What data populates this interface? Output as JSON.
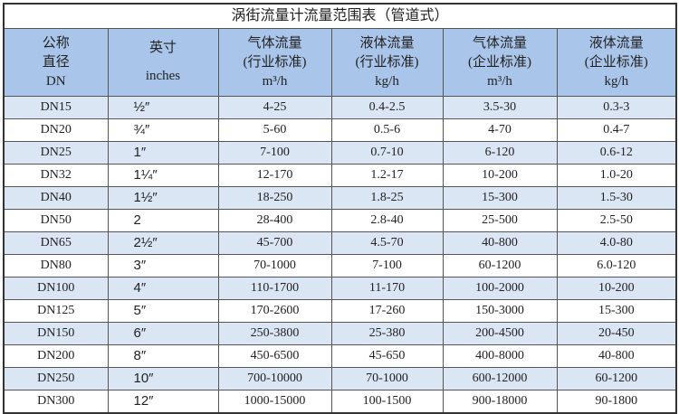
{
  "title": "涡街流量计流量范围表（管道式）",
  "headers": [
    [
      "公称",
      "直径",
      "DN"
    ],
    [
      "英寸",
      "",
      "inches"
    ],
    [
      "气体流量",
      "(行业标准)",
      "m³/h"
    ],
    [
      "液体流量",
      "(行业标准)",
      "kg/h"
    ],
    [
      "气体流量",
      "(企业标准)",
      "m³/h"
    ],
    [
      "液体流量",
      "(企业标准)",
      "kg/h"
    ]
  ],
  "rows": [
    [
      "DN15",
      "½″",
      "4-25",
      "0.4-2.5",
      "3.5-30",
      "0.3-3"
    ],
    [
      "DN20",
      "¾″",
      "5-60",
      "0.5-6",
      "4-70",
      "0.4-7"
    ],
    [
      "DN25",
      "1″",
      "7-100",
      "0.7-10",
      "6-120",
      "0.6-12"
    ],
    [
      "DN32",
      "1¼″",
      "12-170",
      "1.2-17",
      "10-200",
      "1.0-20"
    ],
    [
      "DN40",
      "1½″",
      "18-250",
      "1.8-25",
      "15-300",
      "1.5-30"
    ],
    [
      "DN50",
      "2",
      "28-400",
      "2.8-40",
      "25-500",
      "2.5-50"
    ],
    [
      "DN65",
      "2½″",
      "45-700",
      "4.5-70",
      "40-800",
      "4.0-80"
    ],
    [
      "DN80",
      "3″",
      "70-1000",
      "7-100",
      "60-1200",
      "6.0-120"
    ],
    [
      "DN100",
      "4″",
      "110-1700",
      "11-170",
      "100-2000",
      "10-200"
    ],
    [
      "DN125",
      "5″",
      "170-2600",
      "17-260",
      "150-3000",
      "15-300"
    ],
    [
      "DN150",
      "6″",
      "250-3800",
      "25-380",
      "200-4500",
      "20-450"
    ],
    [
      "DN200",
      "8″",
      "450-6500",
      "45-650",
      "400-8000",
      "40-800"
    ],
    [
      "DN250",
      "10″",
      "700-10000",
      "70-1000",
      "600-12000",
      "60-1200"
    ],
    [
      "DN300",
      "12″",
      "1000-15000",
      "100-1500",
      "900-18000",
      "90-1800"
    ]
  ]
}
